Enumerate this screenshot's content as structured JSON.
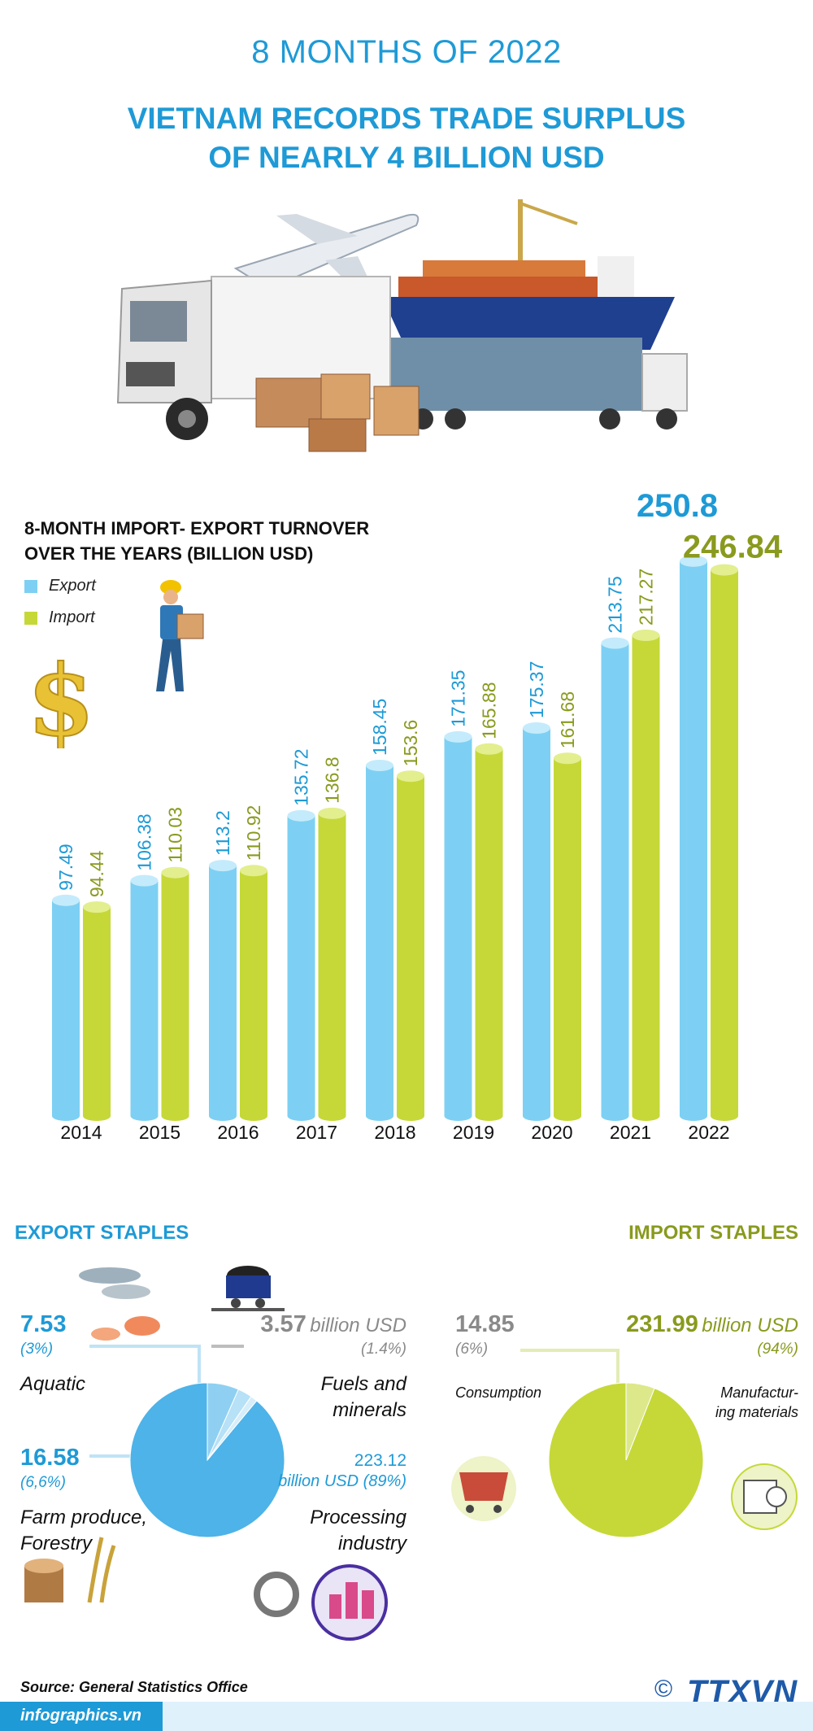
{
  "header": {
    "period": "8 MONTHS OF 2022",
    "headline_line1": "VIETNAM RECORDS TRADE SURPLUS",
    "headline_line2": "OF NEARLY 4 BILLION USD"
  },
  "colors": {
    "export": "#7dd0f3",
    "import": "#c5d838",
    "accent_blue": "#1e9ad6",
    "accent_olive": "#8a9a1e"
  },
  "chart_data": {
    "type": "bar",
    "title_line1": "8-MONTH IMPORT- EXPORT TURNOVER",
    "title_line2": "OVER THE YEARS (BILLION USD)",
    "categories": [
      "2014",
      "2015",
      "2016",
      "2017",
      "2018",
      "2019",
      "2020",
      "2021",
      "2022"
    ],
    "series": [
      {
        "name": "Export",
        "values": [
          97.49,
          106.38,
          113.2,
          135.72,
          158.45,
          171.35,
          175.37,
          213.75,
          250.8
        ],
        "labels": [
          "97.49",
          "106.38",
          "113.2",
          "135.72",
          "158.45",
          "171.35",
          "175.37",
          "213.75",
          "250.8"
        ]
      },
      {
        "name": "Import",
        "values": [
          94.44,
          110.03,
          110.92,
          136.8,
          153.6,
          165.88,
          161.68,
          217.27,
          246.84
        ],
        "labels": [
          "94.44",
          "110.03",
          "110.92",
          "136.8",
          "153.6",
          "165.88",
          "161.68",
          "217.27",
          "246.84"
        ]
      }
    ],
    "legend_placement": "top-left",
    "grid": false
  },
  "export_staples": {
    "heading": "EXPORT STAPLES",
    "items": [
      {
        "value": "7.53",
        "pct": "(3%)",
        "name": "Aquatic"
      },
      {
        "value": "3.57",
        "unit": "billion USD",
        "pct": "(1.4%)",
        "name_line1": "Fuels and",
        "name_line2": "minerals"
      },
      {
        "value": "16.58",
        "pct": "(6,6%)",
        "name_line1": "Farm produce,",
        "name_line2": "Forestry"
      },
      {
        "value": "223.12",
        "unit": "billion USD (89%)",
        "name_line1": "Processing",
        "name_line2": "industry"
      }
    ],
    "pie_values": [
      223.12,
      16.58,
      7.53,
      3.57
    ]
  },
  "import_staples": {
    "heading": "IMPORT STAPLES",
    "items": [
      {
        "value": "14.85",
        "pct": "(6%)",
        "name": "Consumption"
      },
      {
        "value": "231.99",
        "unit": "billion USD",
        "pct": "(94%)",
        "name_line1": "Manufactur-",
        "name_line2": "ing materials"
      }
    ],
    "pie_values": [
      231.99,
      14.85
    ]
  },
  "footer": {
    "source": "Source:  General Statistics Office",
    "site": "infographics.vn",
    "copyright": "©",
    "agency": "TTXVN"
  }
}
